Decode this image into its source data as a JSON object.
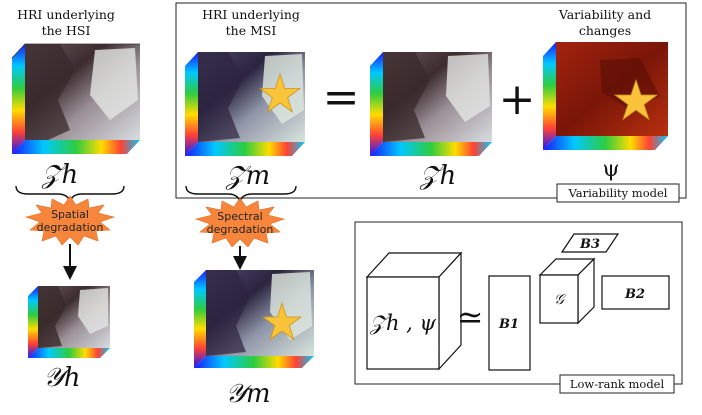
{
  "captions": {
    "hsi": [
      "HRI underlying",
      "the HSI"
    ],
    "msi": [
      "HRI underlying",
      "the MSI"
    ],
    "variability": [
      "Variability and",
      "changes"
    ]
  },
  "symbols": {
    "z_h_left": "𝒵h",
    "z_m": "𝒵m",
    "z_h_mid": "𝒵h",
    "psi": "ψ",
    "y_h": "𝒴h",
    "y_m": "𝒴m",
    "equals": "=",
    "plus": "+",
    "approx": "≃",
    "tensor_label": "𝒵h , ψ",
    "b1": "B1",
    "b2": "B2",
    "b3": "B3",
    "core": "𝒢"
  },
  "degradations": {
    "spatial": [
      "Spatial",
      "degradation"
    ],
    "spectral": [
      "Spectral",
      "degradation"
    ]
  },
  "box_labels": {
    "variability_model": "Variability model",
    "low_rank_model": "Low-rank model"
  },
  "colors": {
    "burst": "#f7863c",
    "star": "#f9c33a",
    "change_map": "#8c1d0f",
    "frame": "#222222"
  }
}
